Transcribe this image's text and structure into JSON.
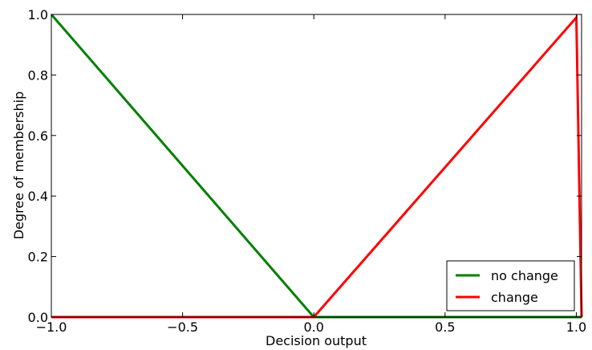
{
  "chart_data": {
    "type": "line",
    "title": "",
    "xlabel": "Decision output",
    "ylabel": "Degree of membership",
    "xlim": [
      -1.0,
      1.02
    ],
    "ylim": [
      0.0,
      1.0
    ],
    "xticks": [
      -1.0,
      -0.5,
      0.0,
      0.5,
      1.0
    ],
    "xtick_labels": [
      "−1.0",
      "−0.5",
      "0.0",
      "0.5",
      "1.0"
    ],
    "yticks": [
      0.0,
      0.2,
      0.4,
      0.6,
      0.8,
      1.0
    ],
    "ytick_labels": [
      "0.0",
      "0.2",
      "0.4",
      "0.6",
      "0.8",
      "1.0"
    ],
    "grid": false,
    "legend_position": "bottom-right",
    "series": [
      {
        "name": "no change",
        "color": "#008000",
        "x": [
          -1.0,
          0.0,
          1.0,
          1.02
        ],
        "y": [
          1.0,
          0.0,
          0.0,
          0.0
        ]
      },
      {
        "name": "change",
        "color": "#ff0000",
        "x": [
          -1.0,
          0.0,
          1.0,
          1.02
        ],
        "y": [
          0.0,
          0.0,
          0.99,
          0.0
        ]
      }
    ]
  }
}
